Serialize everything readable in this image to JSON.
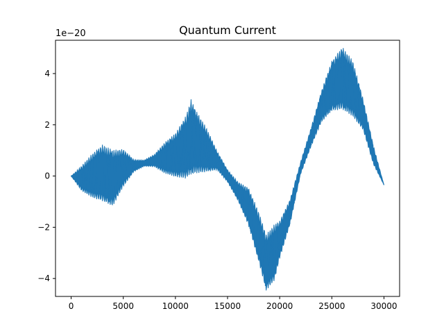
{
  "chart_data": {
    "type": "line",
    "title": "Quantum Current",
    "xlabel": "",
    "ylabel": "",
    "y_offset_label": "1e−20",
    "y_scale_exponent": -20,
    "xlim": [
      -1500,
      31500
    ],
    "ylim": [
      -4.7,
      5.3
    ],
    "x_ticks": [
      0,
      5000,
      10000,
      15000,
      20000,
      25000,
      30000
    ],
    "x_tick_labels": [
      "0",
      "5000",
      "10000",
      "15000",
      "20000",
      "25000",
      "30000"
    ],
    "y_ticks": [
      -4,
      -2,
      0,
      2,
      4
    ],
    "y_tick_labels": [
      "−4",
      "−2",
      "0",
      "2",
      "4"
    ],
    "grid": false,
    "legend": "none",
    "series": [
      {
        "color": "#1f77b4",
        "n_points": 30000,
        "x": [
          0,
          1000,
          2000,
          3000,
          4000,
          5000,
          6000,
          7000,
          8000,
          9000,
          10000,
          11000,
          11500,
          12000,
          13000,
          14000,
          15000,
          16000,
          17000,
          18000,
          18700,
          19500,
          20000,
          21000,
          22000,
          23000,
          24000,
          25000,
          26000,
          27000,
          28000,
          29000,
          30000
        ],
        "y_center": [
          0.0,
          -0.1,
          0.0,
          0.1,
          -0.1,
          0.3,
          0.4,
          0.5,
          0.6,
          0.7,
          0.8,
          1.1,
          1.5,
          1.3,
          1.0,
          0.6,
          0.0,
          -0.6,
          -1.2,
          -2.4,
          -3.4,
          -3.0,
          -2.5,
          -1.4,
          0.3,
          1.5,
          2.7,
          3.5,
          3.8,
          3.4,
          2.4,
          0.8,
          -0.35
        ],
        "y_halfspread": [
          0.0,
          0.4,
          0.7,
          0.9,
          0.9,
          0.6,
          0.2,
          0.1,
          0.2,
          0.5,
          0.7,
          1.0,
          1.2,
          1.0,
          0.7,
          0.3,
          0.2,
          0.3,
          0.6,
          0.8,
          0.9,
          0.9,
          0.6,
          0.4,
          0.2,
          0.3,
          0.5,
          0.8,
          1.0,
          0.9,
          0.5,
          0.3,
          0.0
        ]
      }
    ]
  }
}
